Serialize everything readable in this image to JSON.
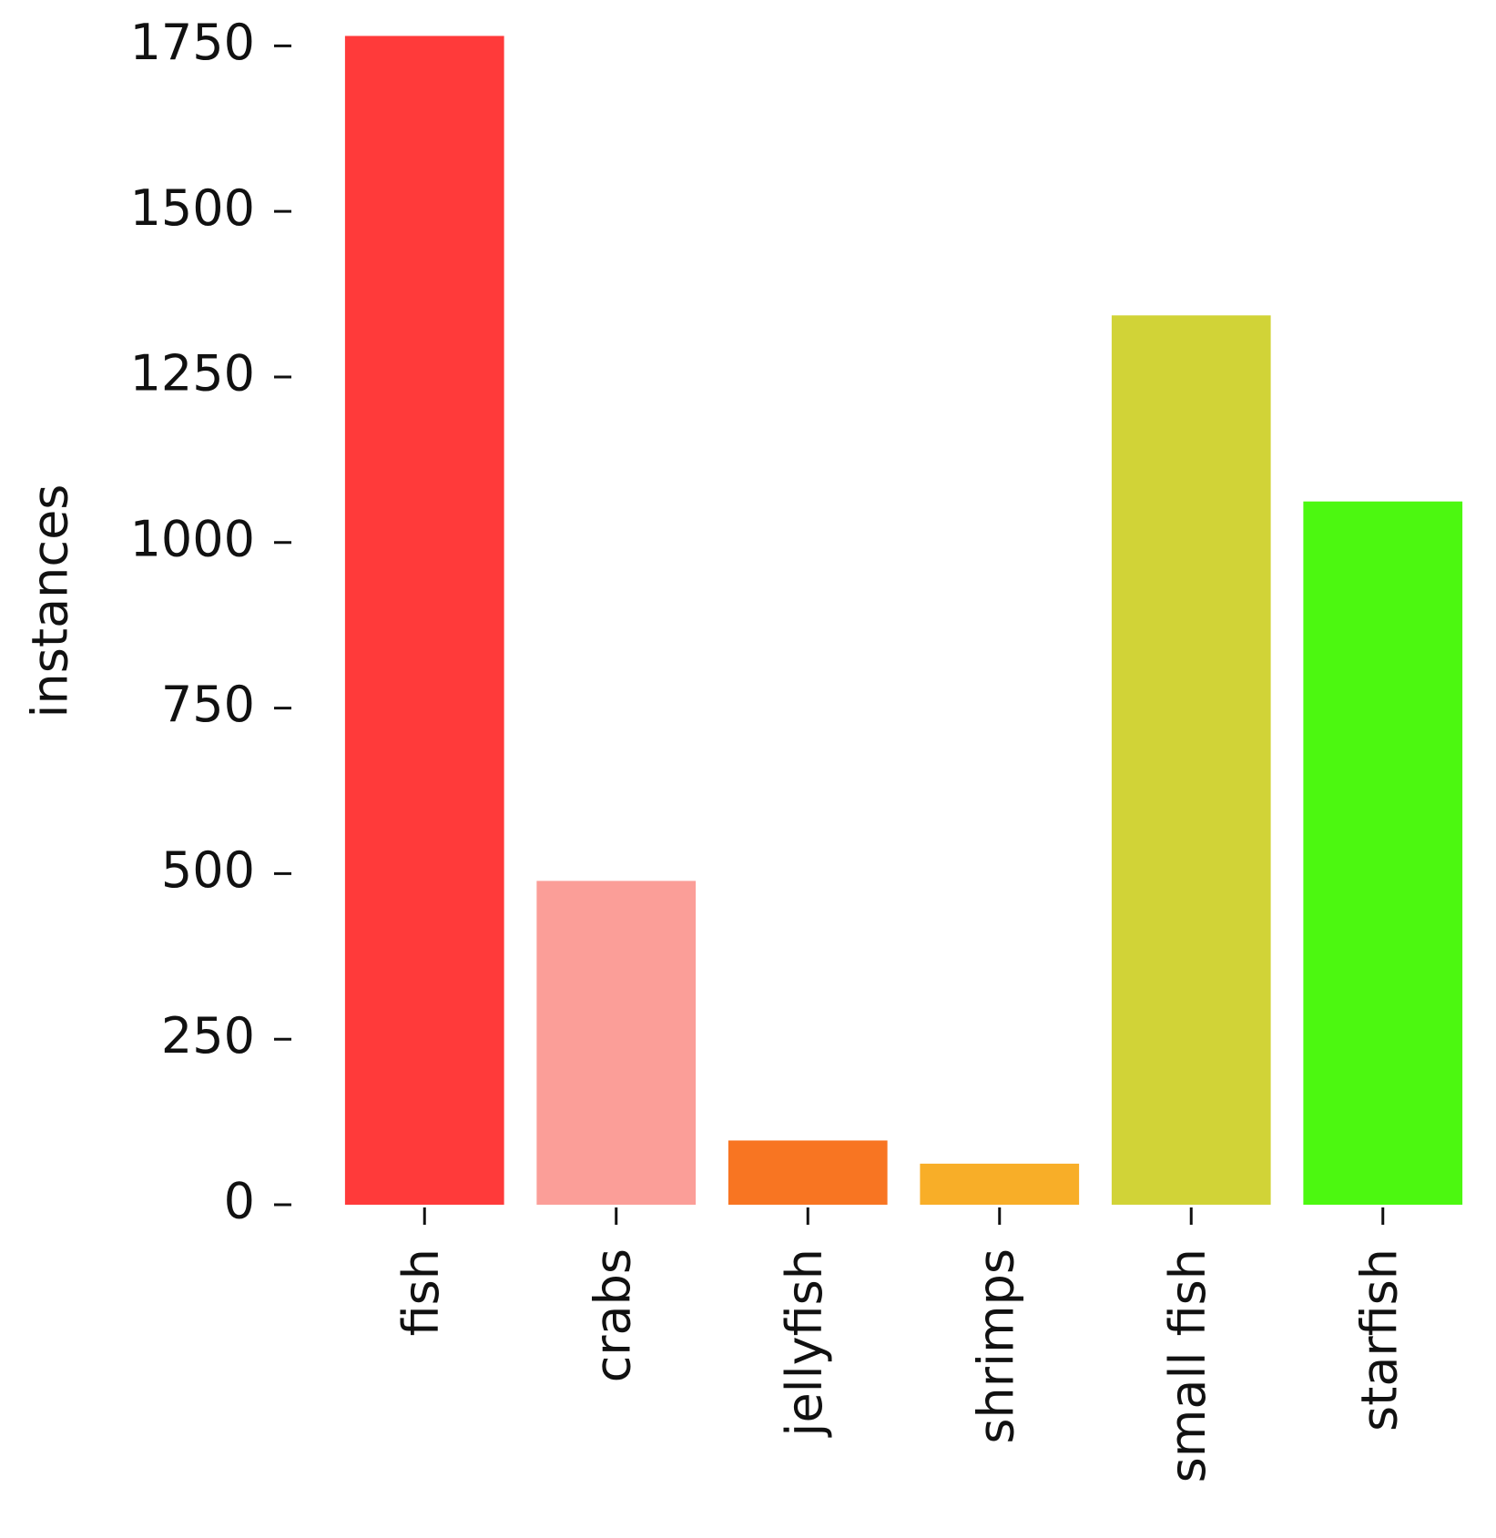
{
  "chart_data": {
    "type": "bar",
    "y_label": "instances",
    "categories": [
      "fish",
      "crabs",
      "jellyfish",
      "shrimps",
      "small fish",
      "starfish"
    ],
    "values": [
      1765,
      489,
      97,
      62,
      1343,
      1062
    ],
    "colors": [
      "#ff3a3a",
      "#fb9e98",
      "#f87522",
      "#f8ae28",
      "#d1d337",
      "#4cf810"
    ],
    "ylim": [
      0,
      1800
    ],
    "yticks": [
      0,
      250,
      500,
      750,
      1000,
      1250,
      1500,
      1750
    ],
    "grid": false
  }
}
